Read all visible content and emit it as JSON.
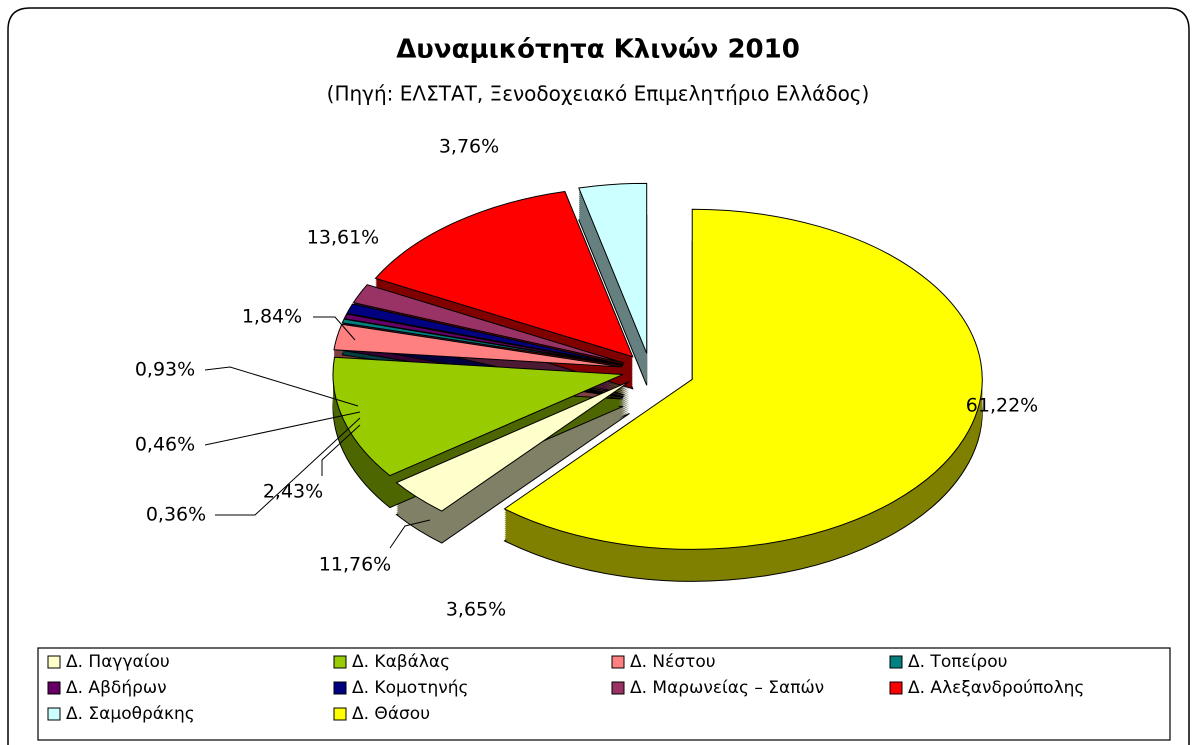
{
  "chart_data": {
    "type": "pie",
    "title": "Δυναμικότητα Κλινών 2010",
    "subtitle": "(Πηγή: ΕΛΣΤΑΤ, Ξενοδοχειακό Επιμελητήριο Ελλάδος)",
    "categories": [
      "Δ. Παγγαίου",
      "Δ. Καβάλας",
      "Δ. Νέστου",
      "Δ. Τοπείρου",
      "Δ. Αβδήρων",
      "Δ. Κομοτηνής",
      "Δ. Μαρωνείας – Σαπών",
      "Δ. Αλεξανδρούπολης",
      "Δ. Σαμοθράκης",
      "Δ. Θάσου"
    ],
    "values": [
      3.65,
      11.76,
      2.43,
      0.36,
      0.46,
      0.93,
      1.84,
      13.61,
      3.76,
      61.22
    ],
    "value_labels": [
      "3,65%",
      "11,76%",
      "2,43%",
      "0,36%",
      "0,46%",
      "0,93%",
      "1,84%",
      "13,61%",
      "3,76%",
      "61,22%"
    ],
    "colors": [
      "#FFFFCC",
      "#99CC00",
      "#FF8080",
      "#008080",
      "#660066",
      "#000080",
      "#993366",
      "#FF0000",
      "#CCFFFF",
      "#FFFF00"
    ],
    "legend": "bottom"
  }
}
